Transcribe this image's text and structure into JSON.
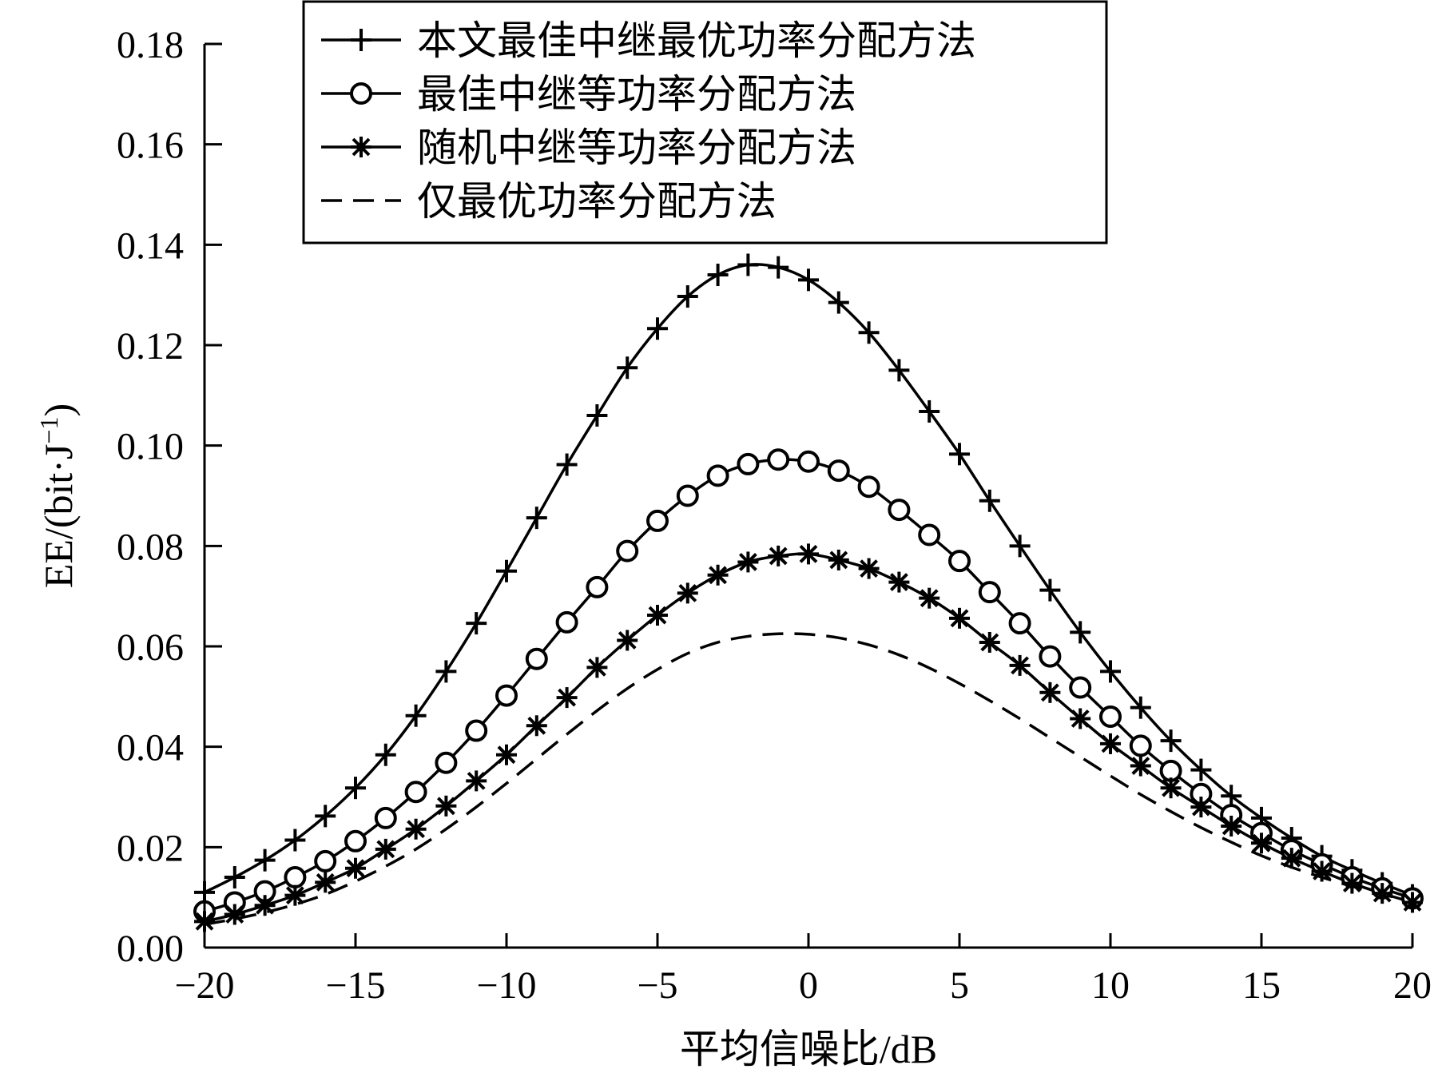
{
  "chart_data": {
    "type": "line",
    "xlabel": "平均信噪比/dB",
    "ylabel": "EE/(bit·J",
    "ylabel_sup": "−1",
    "ylabel_close": ")",
    "xlim": [
      -20,
      20
    ],
    "ylim": [
      0,
      0.18
    ],
    "grid": false,
    "legend_position": "top-right",
    "x_ticks": [
      -20,
      -15,
      -10,
      -5,
      0,
      5,
      10,
      15,
      20
    ],
    "x_tick_labels": [
      "−20",
      "−15",
      "−10",
      "−5",
      "0",
      "5",
      "10",
      "15",
      "20"
    ],
    "y_ticks": [
      0,
      0.02,
      0.04,
      0.06,
      0.08,
      0.1,
      0.12,
      0.14,
      0.16,
      0.18
    ],
    "y_tick_labels": [
      "0.00",
      "0.02",
      "0.04",
      "0.06",
      "0.08",
      "0.10",
      "0.12",
      "0.14",
      "0.16",
      "0.18"
    ],
    "x": [
      -20,
      -19,
      -18,
      -17,
      -16,
      -15,
      -14,
      -13,
      -12,
      -11,
      -10,
      -9,
      -8,
      -7,
      -6,
      -5,
      -4,
      -3,
      -2,
      -1,
      0,
      1,
      2,
      3,
      4,
      5,
      6,
      7,
      8,
      9,
      10,
      11,
      12,
      13,
      14,
      15,
      16,
      17,
      18,
      19,
      20
    ],
    "series": [
      {
        "name": "本文最佳中继最优功率分配方法",
        "marker": "plus",
        "line": "solid",
        "values": [
          0.011,
          0.014,
          0.0174,
          0.0214,
          0.0262,
          0.0318,
          0.0384,
          0.0462,
          0.055,
          0.0646,
          0.075,
          0.0856,
          0.0962,
          0.106,
          0.1155,
          0.1233,
          0.1297,
          0.134,
          0.136,
          0.1355,
          0.133,
          0.1285,
          0.1225,
          0.115,
          0.1068,
          0.0983,
          0.089,
          0.08,
          0.0712,
          0.0628,
          0.055,
          0.0478,
          0.0412,
          0.0354,
          0.0302,
          0.0258,
          0.0218,
          0.0182,
          0.0154,
          0.0128,
          0.0104
        ]
      },
      {
        "name": "最佳中继等功率分配方法",
        "marker": "circle",
        "line": "solid",
        "values": [
          0.0072,
          0.009,
          0.0112,
          0.014,
          0.0172,
          0.0212,
          0.0258,
          0.031,
          0.0368,
          0.0432,
          0.0502,
          0.0575,
          0.0648,
          0.0718,
          0.079,
          0.085,
          0.09,
          0.094,
          0.0963,
          0.0972,
          0.0968,
          0.095,
          0.0918,
          0.0872,
          0.0822,
          0.077,
          0.0708,
          0.0646,
          0.058,
          0.0518,
          0.046,
          0.0402,
          0.0352,
          0.0306,
          0.0264,
          0.0228,
          0.0194,
          0.0166,
          0.014,
          0.0118,
          0.0098
        ]
      },
      {
        "name": "随机中继等功率分配方法",
        "marker": "star",
        "line": "solid",
        "values": [
          0.0052,
          0.0066,
          0.0084,
          0.0104,
          0.013,
          0.0158,
          0.0196,
          0.0236,
          0.0282,
          0.0332,
          0.0384,
          0.0442,
          0.0498,
          0.0558,
          0.0612,
          0.0662,
          0.0706,
          0.0742,
          0.0768,
          0.078,
          0.0784,
          0.0772,
          0.0755,
          0.0728,
          0.0696,
          0.0656,
          0.0608,
          0.0562,
          0.0508,
          0.0456,
          0.0406,
          0.0362,
          0.0318,
          0.028,
          0.0242,
          0.0208,
          0.0178,
          0.0152,
          0.0128,
          0.0108,
          0.009
        ]
      },
      {
        "name": "仅最优功率分配方法",
        "marker": "none",
        "line": "dashed",
        "values": [
          0.0046,
          0.0057,
          0.007,
          0.0086,
          0.0106,
          0.0132,
          0.0162,
          0.0196,
          0.0236,
          0.028,
          0.0327,
          0.0376,
          0.0425,
          0.0472,
          0.0516,
          0.0554,
          0.0586,
          0.0608,
          0.062,
          0.0625,
          0.0624,
          0.0617,
          0.0603,
          0.0583,
          0.0557,
          0.0526,
          0.0492,
          0.0456,
          0.0418,
          0.038,
          0.0342,
          0.0305,
          0.0271,
          0.0239,
          0.021,
          0.0183,
          0.016,
          0.014,
          0.0122,
          0.0106,
          0.0092
        ]
      }
    ]
  }
}
